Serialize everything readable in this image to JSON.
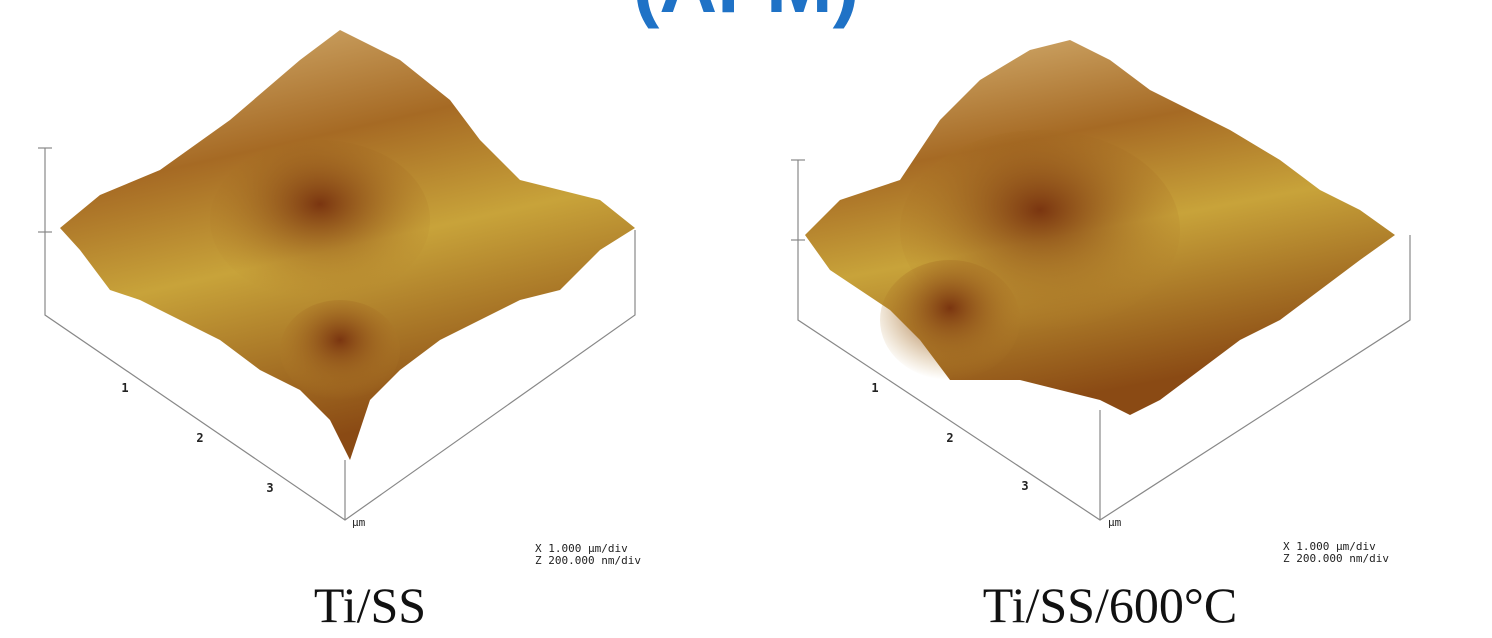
{
  "title": "(AFM)",
  "panels": [
    {
      "axis_ticks": [
        "1",
        "2",
        "3"
      ],
      "unit": "µm",
      "scale_x": "X 1.000 µm/div",
      "scale_z": "Z 200.000 nm/div",
      "caption": "Ti/SS"
    },
    {
      "axis_ticks": [
        "1",
        "2",
        "3"
      ],
      "unit": "µm",
      "scale_x": "X 1.000 µm/div",
      "scale_z": "Z 200.000 nm/div",
      "caption": "Ti/SS/600°C"
    }
  ]
}
